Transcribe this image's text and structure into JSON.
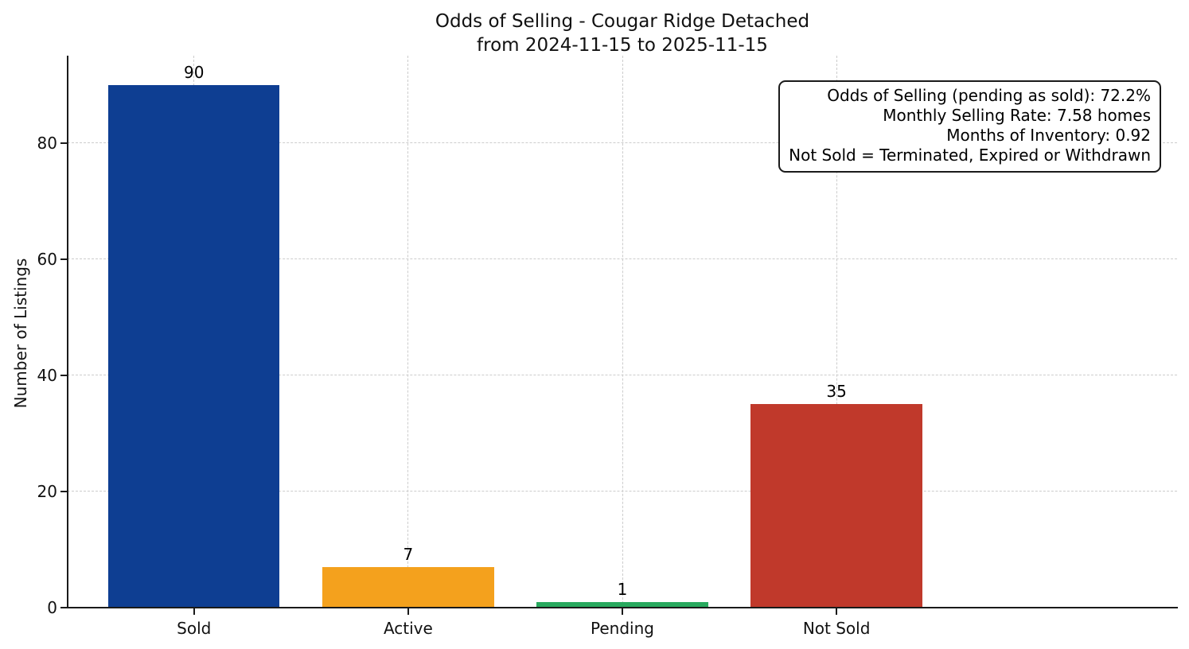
{
  "chart_data": {
    "type": "bar",
    "title": "Odds of Selling - Cougar Ridge Detached\nfrom 2024-11-15 to 2025-11-15",
    "xlabel": "",
    "ylabel": "Number of Listings",
    "categories": [
      "Sold",
      "Active",
      "Pending",
      "Not Sold"
    ],
    "values": [
      90,
      7,
      1,
      35
    ],
    "bar_colors": [
      "#0e3e92",
      "#f4a11d",
      "#28a95e",
      "#c0392b"
    ],
    "yticks": [
      0,
      20,
      40,
      60,
      80
    ],
    "ylim": [
      0,
      95
    ],
    "grid": "dashed, both horizontal and vertical",
    "grid_color": "#cccccc",
    "legend_position": "none",
    "annotation_box": {
      "position": "top-right",
      "lines": [
        "Odds of Selling (pending as sold): 72.2%",
        "Monthly Selling Rate: 7.58 homes",
        "Months of Inventory: 0.92",
        "Not Sold = Terminated, Expired or Withdrawn"
      ]
    }
  }
}
